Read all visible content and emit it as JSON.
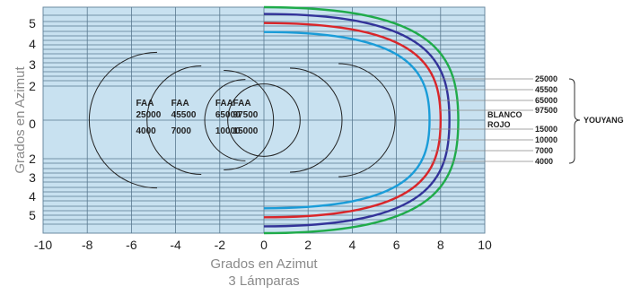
{
  "chart_data": {
    "type": "line",
    "xlabel": "Grados en Azimut",
    "subtitle": "3 Lámparas",
    "ylabel": "Grados en Azimut",
    "xlim": [
      -10,
      10
    ],
    "x_ticks": [
      "-10",
      "-8",
      "-6",
      "-4",
      "-2",
      "0",
      "2",
      "4",
      "6",
      "8",
      "10"
    ],
    "y_tick_labels_upper": [
      "5",
      "4",
      "3",
      "2",
      "0"
    ],
    "y_tick_labels_lower": [
      "2",
      "3",
      "4",
      "5"
    ],
    "ylim": [
      -5,
      5
    ],
    "grid": true,
    "faa_circles": [
      {
        "title": "FAA",
        "intensity": "25000",
        "range": "4000",
        "center_x": -5,
        "radius": 3
      },
      {
        "title": "FAA",
        "intensity": "45500",
        "range": "7000",
        "center_x": -3,
        "radius": 2.4
      },
      {
        "title": "FAA",
        "intensity": "65000",
        "range": "10000",
        "center_x": -1,
        "radius": 1.8
      },
      {
        "title": "FAA",
        "intensity": "97500",
        "range": "15000",
        "center_x": 0,
        "radius": 1.6
      }
    ],
    "series": [
      {
        "color": "#1a9cd8",
        "extent_x": 7.5,
        "half_height": 3.9
      },
      {
        "color": "#d9262a",
        "extent_x": 8.0,
        "half_height": 4.3
      },
      {
        "color": "#333399",
        "extent_x": 8.4,
        "half_height": 4.7
      },
      {
        "color": "#1fab4a",
        "extent_x": 8.8,
        "half_height": 5.0
      }
    ],
    "side_labels": {
      "intensities": [
        "25000",
        "45500",
        "65000",
        "97500"
      ],
      "ranges": [
        "15000",
        "10000",
        "7000",
        "4000"
      ],
      "blanco": "BLANCO",
      "rojo": "ROJO",
      "brand": "YOUYANG"
    }
  }
}
